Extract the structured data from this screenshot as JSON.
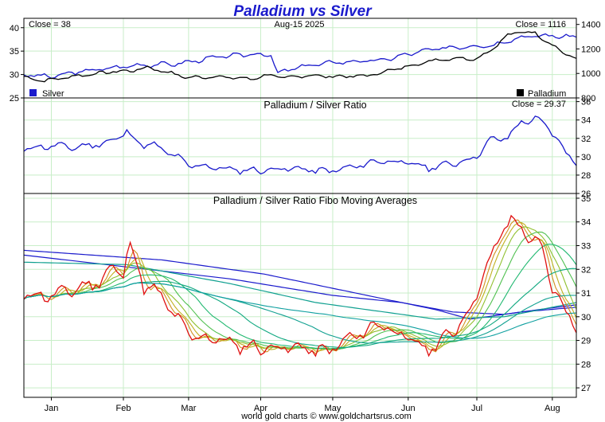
{
  "chart_data": {
    "type": "line",
    "title": "Palladium vs Silver",
    "footer": "world gold charts © www.goldchartsrus.com",
    "date_label": "Aug-15  2025",
    "x_tick_labels": [
      "Jan",
      "Feb",
      "Mar",
      "Apr",
      "May",
      "Jun",
      "Jul",
      "Aug"
    ],
    "x_tick_index": [
      8,
      29,
      48,
      69,
      90,
      112,
      132,
      154
    ],
    "n_points": 162,
    "grid": true,
    "colors": {
      "silver": "#1a1acc",
      "palladium": "#000000",
      "ratio": "#1a1acc",
      "ratio_in_ma": "#e01010",
      "grid": "#c8eec8"
    },
    "panels": [
      {
        "name": "price",
        "close_left": "Close = 38",
        "close_right": "Close = 1116",
        "ylim_left": [
          25,
          42
        ],
        "ylim_right": [
          800,
          1450
        ],
        "ticks_left": [
          25,
          30,
          35,
          40
        ],
        "ticks_right": [
          800,
          1000,
          1200,
          1400
        ],
        "legend": [
          "Silver",
          "Palladium"
        ],
        "silver_keys": [
          [
            0,
            30
          ],
          [
            8,
            29.5
          ],
          [
            16,
            30.6
          ],
          [
            28,
            31.6
          ],
          [
            33,
            32
          ],
          [
            45,
            32.3
          ],
          [
            56,
            33.7
          ],
          [
            67,
            34.4
          ],
          [
            72,
            34.1
          ],
          [
            74,
            30.2
          ],
          [
            80,
            31.6
          ],
          [
            90,
            32.6
          ],
          [
            104,
            33
          ],
          [
            116,
            35
          ],
          [
            124,
            35.8
          ],
          [
            129,
            36
          ],
          [
            137,
            36.3
          ],
          [
            141,
            37.3
          ],
          [
            146,
            38.1
          ],
          [
            152,
            38.3
          ],
          [
            161,
            38
          ]
        ],
        "palladium_keys": [
          [
            0,
            970
          ],
          [
            6,
            940
          ],
          [
            14,
            975
          ],
          [
            20,
            995
          ],
          [
            26,
            1015
          ],
          [
            31,
            1020
          ],
          [
            36,
            1050
          ],
          [
            41,
            1015
          ],
          [
            48,
            965
          ],
          [
            56,
            975
          ],
          [
            66,
            955
          ],
          [
            72,
            990
          ],
          [
            76,
            960
          ],
          [
            82,
            985
          ],
          [
            90,
            975
          ],
          [
            100,
            980
          ],
          [
            106,
            1020
          ],
          [
            112,
            1060
          ],
          [
            120,
            1110
          ],
          [
            126,
            1125
          ],
          [
            132,
            1120
          ],
          [
            136,
            1190
          ],
          [
            141,
            1310
          ],
          [
            144,
            1340
          ],
          [
            149,
            1330
          ],
          [
            153,
            1250
          ],
          [
            157,
            1175
          ],
          [
            161,
            1116
          ]
        ]
      },
      {
        "name": "ratio",
        "label": "Palladium / Silver Ratio",
        "close_right": "Close = 29.37",
        "ylim": [
          26,
          36.4
        ],
        "ticks": [
          26,
          28,
          30,
          32,
          34,
          36
        ],
        "ratio_keys": [
          [
            0,
            30.8
          ],
          [
            5,
            31.1
          ],
          [
            10,
            31.2
          ],
          [
            15,
            31
          ],
          [
            20,
            31.3
          ],
          [
            25,
            31.6
          ],
          [
            30,
            32.7
          ],
          [
            34,
            31.4
          ],
          [
            38,
            31.2
          ],
          [
            44,
            30.1
          ],
          [
            48,
            29.1
          ],
          [
            55,
            28.9
          ],
          [
            60,
            28.6
          ],
          [
            68,
            28.5
          ],
          [
            75,
            28.7
          ],
          [
            80,
            28.7
          ],
          [
            88,
            28.4
          ],
          [
            95,
            28.8
          ],
          [
            104,
            29.6
          ],
          [
            112,
            29.3
          ],
          [
            118,
            28.8
          ],
          [
            124,
            29.2
          ],
          [
            131,
            29.8
          ],
          [
            136,
            31.8
          ],
          [
            141,
            32.1
          ],
          [
            145,
            33.8
          ],
          [
            149,
            34.1
          ],
          [
            153,
            33.2
          ],
          [
            158,
            30.4
          ],
          [
            161,
            29.4
          ]
        ]
      },
      {
        "name": "fibo_ma",
        "label": "Palladium / Silver Ratio Fibo Moving Averages",
        "ylim": [
          26.6,
          35.2
        ],
        "ticks": [
          27,
          28,
          29,
          30,
          31,
          32,
          33,
          34,
          35
        ],
        "ratio_keys": [
          [
            0,
            30.9
          ],
          [
            8,
            30.9
          ],
          [
            16,
            31.2
          ],
          [
            22,
            31.5
          ],
          [
            26,
            32.1
          ],
          [
            29,
            31.8
          ],
          [
            31,
            33.1
          ],
          [
            35,
            31.3
          ],
          [
            40,
            30.9
          ],
          [
            45,
            29.8
          ],
          [
            50,
            29.1
          ],
          [
            56,
            29.1
          ],
          [
            62,
            28.8
          ],
          [
            69,
            28.7
          ],
          [
            75,
            28.7
          ],
          [
            80,
            28.7
          ],
          [
            88,
            28.5
          ],
          [
            95,
            29.1
          ],
          [
            100,
            29.4
          ],
          [
            104,
            29.8
          ],
          [
            108,
            29.3
          ],
          [
            112,
            29.1
          ],
          [
            117,
            28.6
          ],
          [
            121,
            28.9
          ],
          [
            125,
            29.4
          ],
          [
            128,
            29.9
          ],
          [
            131,
            30.5
          ],
          [
            133,
            31.6
          ],
          [
            136,
            32.3
          ],
          [
            139,
            33.6
          ],
          [
            142,
            34.1
          ],
          [
            145,
            33.7
          ],
          [
            148,
            33.3
          ],
          [
            151,
            32.8
          ],
          [
            154,
            31.3
          ],
          [
            157,
            30.4
          ],
          [
            161,
            29.6
          ]
        ],
        "ma_periods": [
          3,
          5,
          8,
          13,
          21,
          34,
          55,
          89
        ],
        "ma_colors": [
          "#d09020",
          "#c0b020",
          "#90c030",
          "#50c050",
          "#20b870",
          "#10a880",
          "#10a090",
          "#10a0a0"
        ],
        "long_ma_keys": [
          [
            [
              0,
              32.6
            ],
            [
              30,
              32.1
            ],
            [
              60,
              31.6
            ],
            [
              90,
              30.9
            ],
            [
              110,
              30.6
            ],
            [
              125,
              30.2
            ],
            [
              140,
              30.1
            ],
            [
              150,
              30.3
            ],
            [
              161,
              30.5
            ]
          ],
          [
            [
              0,
              32.8
            ],
            [
              40,
              32.4
            ],
            [
              70,
              31.8
            ],
            [
              100,
              30.9
            ],
            [
              120,
              30.3
            ],
            [
              130,
              29.9
            ],
            [
              145,
              30.2
            ],
            [
              161,
              30.4
            ]
          ],
          [
            [
              0,
              32.3
            ],
            [
              30,
              32.2
            ],
            [
              60,
              31.4
            ],
            [
              85,
              30.6
            ],
            [
              105,
              30.2
            ],
            [
              120,
              29.9
            ],
            [
              140,
              30.0
            ],
            [
              161,
              30.6
            ]
          ]
        ]
      }
    ]
  }
}
